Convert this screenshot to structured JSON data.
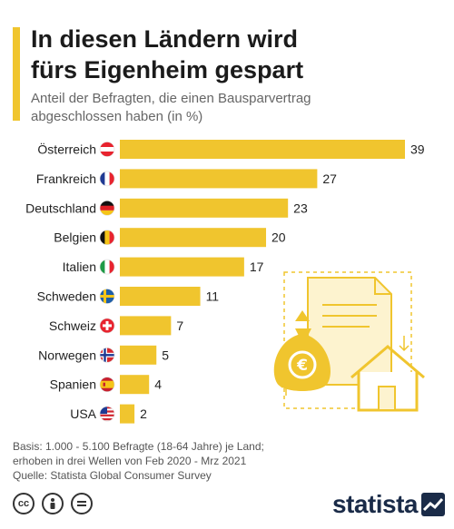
{
  "header": {
    "title_line1": "In diesen Ländern wird",
    "title_line2": "fürs Eigenheim gespart",
    "subtitle_line1": "Anteil der Befragten, die einen Bausparvertrag",
    "subtitle_line2": "abgeschlossen haben (in %)"
  },
  "chart_data": {
    "type": "bar",
    "orientation": "horizontal",
    "categories": [
      "Österreich",
      "Frankreich",
      "Deutschland",
      "Belgien",
      "Italien",
      "Schweden",
      "Schweiz",
      "Norwegen",
      "Spanien",
      "USA"
    ],
    "values": [
      39,
      27,
      23,
      20,
      17,
      11,
      7,
      5,
      4,
      2
    ],
    "xlim": [
      0,
      39
    ],
    "grid": false,
    "bar_color": "#f0c52e",
    "flag_icons": [
      "austria-flag-icon",
      "france-flag-icon",
      "germany-flag-icon",
      "belgium-flag-icon",
      "italy-flag-icon",
      "sweden-flag-icon",
      "switzerland-flag-icon",
      "norway-flag-icon",
      "spain-flag-icon",
      "usa-flag-icon"
    ]
  },
  "footer": {
    "note_line1": "Basis: 1.000 - 5.100 Befragte (18-64 Jahre) je Land;",
    "note_line2": "erhoben in drei Wellen von Feb 2020 - Mrz 2021",
    "source": "Quelle: Statista Global Consumer Survey",
    "brand": "statista"
  },
  "colors": {
    "accent": "#f0c52e",
    "text": "#222222",
    "brand": "#1a2b48"
  }
}
